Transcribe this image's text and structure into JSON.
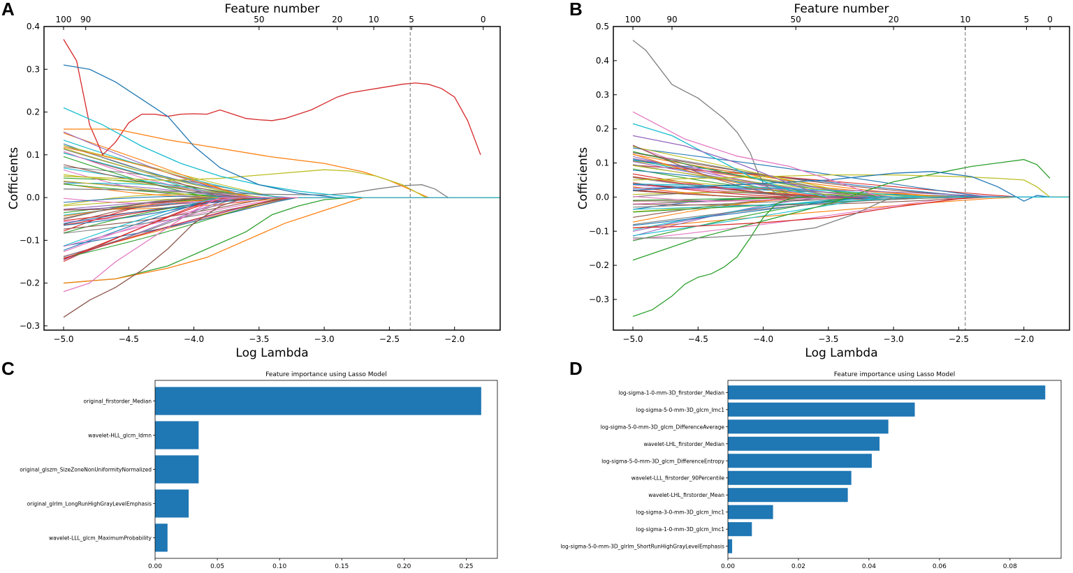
{
  "panels": [
    "A",
    "B",
    "C",
    "D"
  ],
  "chart_data": [
    {
      "panel": "A",
      "type": "line",
      "title": "",
      "top_axis_label": "Feature number",
      "top_ticks": [
        {
          "x": -5.0,
          "label": "100"
        },
        {
          "x": -4.83,
          "label": "90"
        },
        {
          "x": -3.5,
          "label": "50"
        },
        {
          "x": -2.9,
          "label": "20"
        },
        {
          "x": -2.62,
          "label": "10"
        },
        {
          "x": -2.33,
          "label": "5"
        },
        {
          "x": -1.78,
          "label": "0"
        }
      ],
      "xlabel": "Log Lambda",
      "ylabel": "Cofficients",
      "xlim": [
        -5.15,
        -1.65
      ],
      "ylim": [
        -0.31,
        0.4
      ],
      "xticks": [
        -5.0,
        -4.5,
        -4.0,
        -3.5,
        -3.0,
        -2.5,
        -2.0
      ],
      "xtick_labels": [
        "−5.0",
        "−4.5",
        "−4.0",
        "−3.5",
        "−3.0",
        "−2.5",
        "−2.0"
      ],
      "yticks": [
        -0.3,
        -0.2,
        -0.1,
        0.0,
        0.1,
        0.2,
        0.3,
        0.4
      ],
      "ytick_labels": [
        "−0.3",
        "−0.2",
        "−0.1",
        "0.0",
        "0.1",
        "0.2",
        "0.3",
        "0.4"
      ],
      "vline_x": -2.34,
      "highlight_series": [
        {
          "name": "red-rising",
          "color": "#d62728",
          "x": [
            -5.0,
            -4.9,
            -4.8,
            -4.7,
            -4.6,
            -4.5,
            -4.4,
            -4.3,
            -4.2,
            -4.1,
            -4.0,
            -3.9,
            -3.8,
            -3.7,
            -3.6,
            -3.5,
            -3.4,
            -3.3,
            -3.2,
            -3.1,
            -3.0,
            -2.9,
            -2.8,
            -2.7,
            -2.6,
            -2.5,
            -2.4,
            -2.3,
            -2.2,
            -2.1,
            -2.0,
            -1.9,
            -1.8
          ],
          "y": [
            0.37,
            0.32,
            0.17,
            0.1,
            0.13,
            0.175,
            0.195,
            0.195,
            0.19,
            0.195,
            0.196,
            0.195,
            0.205,
            0.195,
            0.185,
            0.182,
            0.18,
            0.185,
            0.195,
            0.205,
            0.22,
            0.235,
            0.245,
            0.25,
            0.255,
            0.26,
            0.265,
            0.268,
            0.265,
            0.255,
            0.235,
            0.18,
            0.1
          ]
        },
        {
          "name": "gray-late",
          "color": "#7f7f7f",
          "x": [
            -5.0,
            -4.5,
            -4.0,
            -3.5,
            -3.0,
            -2.8,
            -2.6,
            -2.4,
            -2.25,
            -2.15,
            -2.05
          ],
          "y": [
            0.02,
            0.018,
            0.012,
            0.008,
            0.006,
            0.01,
            0.02,
            0.028,
            0.03,
            0.02,
            0.0
          ]
        },
        {
          "name": "orange-late",
          "color": "#ff7f0e",
          "x": [
            -5.0,
            -4.6,
            -4.2,
            -3.8,
            -3.4,
            -3.0,
            -2.7,
            -2.5,
            -2.35,
            -2.2
          ],
          "y": [
            0.16,
            0.16,
            0.135,
            0.115,
            0.095,
            0.08,
            0.06,
            0.04,
            0.02,
            0.0
          ]
        },
        {
          "name": "olive-late",
          "color": "#bcbd22",
          "x": [
            -5.0,
            -4.6,
            -4.2,
            -3.8,
            -3.4,
            -3.0,
            -2.8,
            -2.6,
            -2.4,
            -2.22
          ],
          "y": [
            0.05,
            0.045,
            0.04,
            0.045,
            0.055,
            0.065,
            0.062,
            0.05,
            0.03,
            0.0
          ]
        },
        {
          "name": "cyan-top",
          "color": "#17becf",
          "x": [
            -5.0,
            -4.7,
            -4.4,
            -4.1,
            -3.8,
            -3.5,
            -3.2,
            -2.9,
            -2.7
          ],
          "y": [
            0.21,
            0.17,
            0.12,
            0.08,
            0.05,
            0.03,
            0.015,
            0.005,
            0.0
          ]
        },
        {
          "name": "blue-top",
          "color": "#1f77b4",
          "x": [
            -5.0,
            -4.8,
            -4.6,
            -4.4,
            -4.2,
            -4.0,
            -3.8,
            -3.5,
            -3.2,
            -2.9
          ],
          "y": [
            0.31,
            0.3,
            0.27,
            0.23,
            0.19,
            0.12,
            0.07,
            0.03,
            0.01,
            0.0
          ]
        },
        {
          "name": "green-neg",
          "color": "#2ca02c",
          "x": [
            -5.0,
            -4.6,
            -4.2,
            -3.9,
            -3.6,
            -3.4,
            -3.2,
            -3.0,
            -2.8
          ],
          "y": [
            -0.2,
            -0.19,
            -0.16,
            -0.12,
            -0.08,
            -0.04,
            -0.02,
            -0.005,
            0.0
          ]
        },
        {
          "name": "orange-neg",
          "color": "#ff7f0e",
          "x": [
            -5.0,
            -4.6,
            -4.2,
            -3.9,
            -3.6,
            -3.3,
            -3.0,
            -2.8,
            -2.7
          ],
          "y": [
            -0.2,
            -0.19,
            -0.165,
            -0.14,
            -0.1,
            -0.06,
            -0.03,
            -0.01,
            0.0
          ]
        },
        {
          "name": "brown-neg",
          "color": "#8c564b",
          "x": [
            -5.0,
            -4.8,
            -4.6,
            -4.4,
            -4.2,
            -4.0,
            -3.8,
            -3.6
          ],
          "y": [
            -0.28,
            -0.24,
            -0.21,
            -0.17,
            -0.12,
            -0.06,
            -0.02,
            0.0
          ]
        },
        {
          "name": "pink-neg",
          "color": "#e377c2",
          "x": [
            -5.0,
            -4.8,
            -4.6,
            -4.4,
            -4.2,
            -4.0,
            -3.8
          ],
          "y": [
            -0.22,
            -0.2,
            -0.15,
            -0.11,
            -0.07,
            -0.03,
            0.0
          ]
        }
      ],
      "background_series_count": 60,
      "background_series_note": "many additional coefficient paths start between -0.15 and 0.16 at x=-5.0 and shrink to 0 by about x=-3.2"
    },
    {
      "panel": "B",
      "type": "line",
      "title": "",
      "top_axis_label": "Feature number",
      "top_ticks": [
        {
          "x": -5.0,
          "label": "100"
        },
        {
          "x": -4.7,
          "label": "90"
        },
        {
          "x": -3.75,
          "label": "50"
        },
        {
          "x": -3.0,
          "label": "20"
        },
        {
          "x": -2.45,
          "label": "10"
        },
        {
          "x": -1.98,
          "label": "5"
        },
        {
          "x": -1.8,
          "label": "0"
        }
      ],
      "xlabel": "Log Lambda",
      "ylabel": "Cofficients",
      "xlim": [
        -5.15,
        -1.65
      ],
      "ylim": [
        -0.39,
        0.5
      ],
      "xticks": [
        -5.0,
        -4.5,
        -4.0,
        -3.5,
        -3.0,
        -2.5,
        -2.0
      ],
      "xtick_labels": [
        "−5.0",
        "−4.5",
        "−4.0",
        "−3.5",
        "−3.0",
        "−2.5",
        "−2.0"
      ],
      "yticks": [
        -0.3,
        -0.2,
        -0.1,
        0.0,
        0.1,
        0.2,
        0.3,
        0.4,
        0.5
      ],
      "ytick_labels": [
        "−0.3",
        "−0.2",
        "−0.1",
        "0.0",
        "0.1",
        "0.2",
        "0.3",
        "0.4",
        "0.5"
      ],
      "vline_x": -2.45,
      "highlight_series": [
        {
          "name": "gray-top",
          "color": "#7f7f7f",
          "x": [
            -5.0,
            -4.9,
            -4.8,
            -4.7,
            -4.6,
            -4.5,
            -4.4,
            -4.3,
            -4.2,
            -4.1,
            -4.05,
            -4.0,
            -3.9,
            -3.8
          ],
          "y": [
            0.46,
            0.43,
            0.38,
            0.33,
            0.31,
            0.29,
            0.26,
            0.23,
            0.19,
            0.13,
            0.08,
            0.04,
            0.01,
            0.0
          ]
        },
        {
          "name": "green-bottom",
          "color": "#2ca02c",
          "x": [
            -5.0,
            -4.85,
            -4.7,
            -4.6,
            -4.5,
            -4.4,
            -4.3,
            -4.2,
            -4.1,
            -4.0,
            -3.9,
            -3.8,
            -3.7
          ],
          "y": [
            -0.35,
            -0.33,
            -0.29,
            -0.255,
            -0.235,
            -0.225,
            -0.205,
            -0.175,
            -0.12,
            -0.06,
            -0.02,
            -0.005,
            0.0
          ]
        },
        {
          "name": "green-rising",
          "color": "#2ca02c",
          "x": [
            -5.0,
            -4.5,
            -4.0,
            -3.5,
            -3.2,
            -3.0,
            -2.8,
            -2.6,
            -2.4,
            -2.2,
            -2.0,
            -1.9,
            -1.8
          ],
          "y": [
            -0.185,
            -0.12,
            -0.07,
            -0.02,
            0.02,
            0.045,
            0.06,
            0.075,
            0.09,
            0.1,
            0.11,
            0.095,
            0.055
          ]
        },
        {
          "name": "olive-flat",
          "color": "#bcbd22",
          "x": [
            -5.0,
            -4.5,
            -4.0,
            -3.5,
            -3.0,
            -2.5,
            -2.2,
            -2.0,
            -1.9,
            -1.8
          ],
          "y": [
            0.05,
            0.055,
            0.06,
            0.065,
            0.065,
            0.06,
            0.055,
            0.05,
            0.03,
            0.0
          ]
        },
        {
          "name": "blue-dip",
          "color": "#1f77b4",
          "x": [
            -5.0,
            -4.5,
            -4.0,
            -3.5,
            -3.0,
            -2.7,
            -2.4,
            -2.2,
            -2.0,
            -1.9,
            -1.8
          ],
          "y": [
            0.02,
            0.03,
            0.04,
            0.05,
            0.07,
            0.075,
            0.06,
            0.03,
            -0.012,
            0.005,
            0.0
          ]
        },
        {
          "name": "red-neg",
          "color": "#d62728",
          "x": [
            -5.0,
            -4.5,
            -4.0,
            -3.5,
            -3.0,
            -2.7,
            -2.5,
            -2.3
          ],
          "y": [
            -0.09,
            -0.085,
            -0.075,
            -0.06,
            -0.03,
            -0.015,
            -0.005,
            0.0
          ]
        },
        {
          "name": "gray-neg",
          "color": "#7f7f7f",
          "x": [
            -5.0,
            -4.5,
            -4.0,
            -3.6,
            -3.3,
            -3.1,
            -3.0
          ],
          "y": [
            -0.12,
            -0.12,
            -0.11,
            -0.09,
            -0.05,
            -0.015,
            0.0
          ]
        },
        {
          "name": "pink-top",
          "color": "#e377c2",
          "x": [
            -5.0,
            -4.6,
            -4.2,
            -3.8,
            -3.4,
            -3.1
          ],
          "y": [
            0.25,
            0.17,
            0.12,
            0.09,
            0.04,
            0.0
          ]
        },
        {
          "name": "cyan-top",
          "color": "#17becf",
          "x": [
            -5.0,
            -4.7,
            -4.4,
            -4.1,
            -3.8,
            -3.5
          ],
          "y": [
            0.215,
            0.18,
            0.12,
            0.06,
            0.02,
            0.0
          ]
        },
        {
          "name": "purple-top",
          "color": "#9467bd",
          "x": [
            -5.0,
            -4.6,
            -4.2,
            -3.8,
            -3.5
          ],
          "y": [
            0.18,
            0.15,
            0.1,
            0.04,
            0.0
          ]
        }
      ],
      "background_series_count": 60,
      "background_series_note": "many additional coefficient paths start between -0.14 and 0.16 at x=-5.0 and shrink to 0 by about x=-2.0"
    },
    {
      "panel": "C",
      "type": "bar",
      "orientation": "horizontal",
      "title": "Feature importance using Lasso Model",
      "categories": [
        "original_firstorder_Median",
        "wavelet-HLL_glcm_Idmn",
        "original_glszm_SizeZoneNonUniformityNormalized",
        "original_glrlm_LongRunHighGrayLevelEmphasis",
        "wavelet-LLL_glcm_MaximumProbability"
      ],
      "values": [
        0.262,
        0.035,
        0.035,
        0.027,
        0.01
      ],
      "color": "#1f77b4",
      "xlim": [
        0,
        0.275
      ],
      "xticks": [
        0.0,
        0.05,
        0.1,
        0.15,
        0.2,
        0.25
      ],
      "xtick_labels": [
        "0.00",
        "0.05",
        "0.10",
        "0.15",
        "0.20",
        "0.25"
      ]
    },
    {
      "panel": "D",
      "type": "bar",
      "orientation": "horizontal",
      "title": "Feature importance using Lasso Model",
      "categories": [
        "log-sigma-1-0-mm-3D_firstorder_Median",
        "log-sigma-5-0-mm-3D_glcm_Imc1",
        "log-sigma-5-0-mm-3D_glcm_DifferenceAverage",
        "wavelet-LHL_firstorder_Median",
        "log-sigma-5-0-mm-3D_glcm_DifferenceEntropy",
        "wavelet-LLL_firstorder_90Percentile",
        "wavelet-LHL_firstorder_Mean",
        "log-sigma-3-0-mm-3D_glcm_Imc1",
        "log-sigma-1-0-mm-3D_glcm_Imc1",
        "log-sigma-5-0-mm-3D_glrlm_ShortRunHighGrayLevelEmphasis"
      ],
      "values": [
        0.09,
        0.053,
        0.0455,
        0.043,
        0.0408,
        0.035,
        0.034,
        0.0128,
        0.0068,
        0.0012
      ],
      "color": "#1f77b4",
      "xlim": [
        0,
        0.0945
      ],
      "xticks": [
        0.0,
        0.02,
        0.04,
        0.06,
        0.08
      ],
      "xtick_labels": [
        "0.00",
        "0.02",
        "0.04",
        "0.06",
        "0.08"
      ]
    }
  ]
}
